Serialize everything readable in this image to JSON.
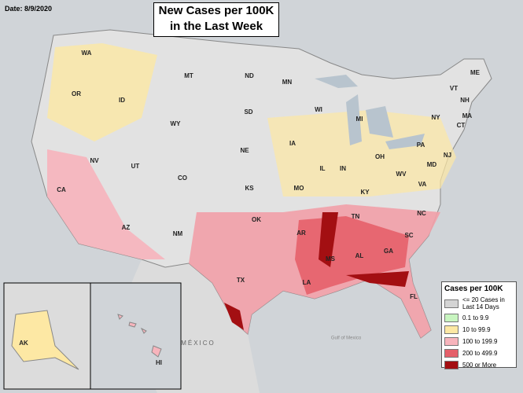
{
  "date": "Date: 8/9/2020",
  "title": [
    "New Cases per 100K",
    "in the Last Week"
  ],
  "legend": {
    "title": "Cases per 100K",
    "items": [
      {
        "label": "<= 20 Cases in Last 14 Days",
        "color": "#d4d4d4"
      },
      {
        "label": "0.1 to 9.9",
        "color": "#c8f5c0"
      },
      {
        "label": "10 to 99.9",
        "color": "#fde8a4"
      },
      {
        "label": "100 to 199.9",
        "color": "#f7b4bc"
      },
      {
        "label": "200 to 499.9",
        "color": "#e5606a"
      },
      {
        "label": "500 or More",
        "color": "#a30f12"
      }
    ]
  },
  "state_labels": [
    "WA",
    "OR",
    "ID",
    "MT",
    "ND",
    "MN",
    "SD",
    "WY",
    "WI",
    "MI",
    "NV",
    "UT",
    "CO",
    "NE",
    "IA",
    "IL",
    "IN",
    "OH",
    "PA",
    "NY",
    "VT",
    "NH",
    "ME",
    "MA",
    "CT",
    "NJ",
    "MD",
    "WV",
    "VA",
    "KY",
    "TN",
    "NC",
    "SC",
    "GA",
    "AL",
    "MS",
    "AR",
    "LA",
    "OK",
    "TX",
    "FL",
    "KS",
    "MO",
    "CA",
    "AZ",
    "NM",
    "AK",
    "HI"
  ],
  "place_labels": [
    "MÉXICO",
    "Gulf of Mexico"
  ]
}
